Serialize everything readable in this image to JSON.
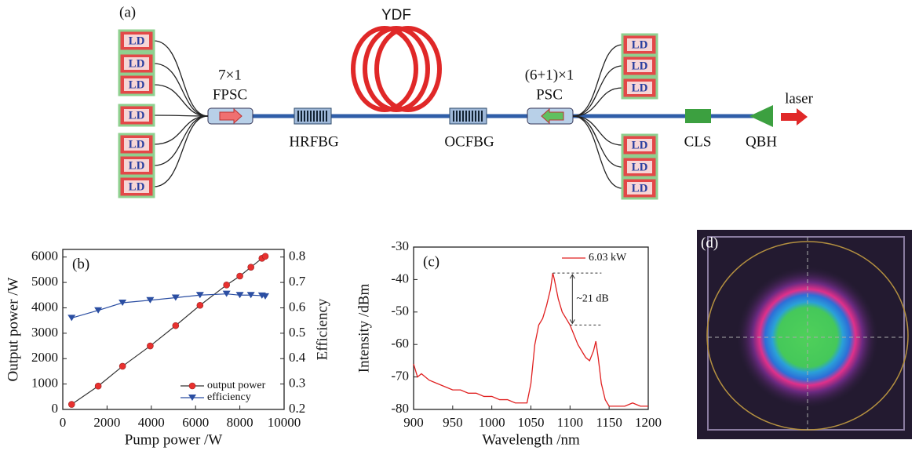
{
  "diagram": {
    "label": "(a)",
    "ld": "LD",
    "ydf": "YDF",
    "fpsc_ratio": "7×1",
    "fpsc": "FPSC",
    "hrfbg": "HRFBG",
    "ocfbg": "OCFBG",
    "psc_ratio": "(6+1)×1",
    "psc": "PSC",
    "cls": "CLS",
    "qbh": "QBH",
    "laser": "laser"
  },
  "chart_data": [
    {
      "type": "line",
      "panel_label": "(b)",
      "x_label": "Pump power /W",
      "y_label": "Output power /W",
      "y2_label": "Efficiency",
      "x": [
        400,
        1600,
        2700,
        3950,
        5100,
        6200,
        7400,
        8000,
        8500,
        9000,
        9150
      ],
      "series": [
        {
          "name": "output power",
          "color": "#e8312f",
          "line_color": "#333333",
          "marker": "circle",
          "values": [
            200,
            920,
            1700,
            2500,
            3300,
            4100,
            4900,
            5250,
            5600,
            5950,
            6030
          ]
        },
        {
          "name": "efficiency",
          "color": "#2b4ea2",
          "marker": "triangle",
          "axis": "y2",
          "values": [
            0.56,
            0.59,
            0.62,
            0.63,
            0.64,
            0.65,
            0.655,
            0.65,
            0.65,
            0.648,
            0.645
          ]
        }
      ],
      "xlim": [
        0,
        10000
      ],
      "xticks": [
        0,
        2000,
        4000,
        6000,
        8000,
        10000
      ],
      "ylim": [
        0,
        6300
      ],
      "yticks": [
        0,
        1000,
        2000,
        3000,
        4000,
        5000,
        6000
      ],
      "y2lim": [
        0.2,
        0.83
      ],
      "y2ticks": [
        0.2,
        0.3,
        0.4,
        0.5,
        0.6,
        0.7,
        0.8
      ],
      "legend": "lower right"
    },
    {
      "type": "line",
      "panel_label": "(c)",
      "x_label": "Wavelength /nm",
      "y_label": "Intensity /dBm",
      "annotation": "~21 dB",
      "x": [
        900,
        905,
        910,
        920,
        930,
        940,
        950,
        960,
        970,
        980,
        990,
        1000,
        1010,
        1020,
        1030,
        1040,
        1045,
        1050,
        1055,
        1060,
        1065,
        1070,
        1075,
        1078,
        1080,
        1085,
        1090,
        1095,
        1100,
        1105,
        1110,
        1115,
        1120,
        1125,
        1130,
        1133,
        1136,
        1140,
        1145,
        1150,
        1160,
        1170,
        1180,
        1190,
        1200
      ],
      "series": [
        {
          "name": "6.03 kW",
          "color": "#e02020",
          "values": [
            -66,
            -70,
            -69,
            -71,
            -72,
            -73,
            -74,
            -74,
            -75,
            -75,
            -76,
            -76,
            -77,
            -77,
            -78,
            -78,
            -78,
            -72,
            -60,
            -54,
            -52,
            -48,
            -43,
            -38,
            -40,
            -46,
            -50,
            -52,
            -54,
            -57,
            -60,
            -62,
            -64,
            -65,
            -62,
            -59,
            -64,
            -72,
            -77,
            -79,
            -79,
            -79,
            -78,
            -79,
            -79
          ]
        }
      ],
      "xlim": [
        900,
        1200
      ],
      "xticks": [
        900,
        950,
        1000,
        1050,
        1100,
        1150,
        1200
      ],
      "ylim": [
        -80,
        -30
      ],
      "yticks": [
        -80,
        -70,
        -60,
        -50,
        -40,
        -30
      ],
      "legend": "upper right"
    }
  ],
  "image": {
    "label": "(d)"
  }
}
